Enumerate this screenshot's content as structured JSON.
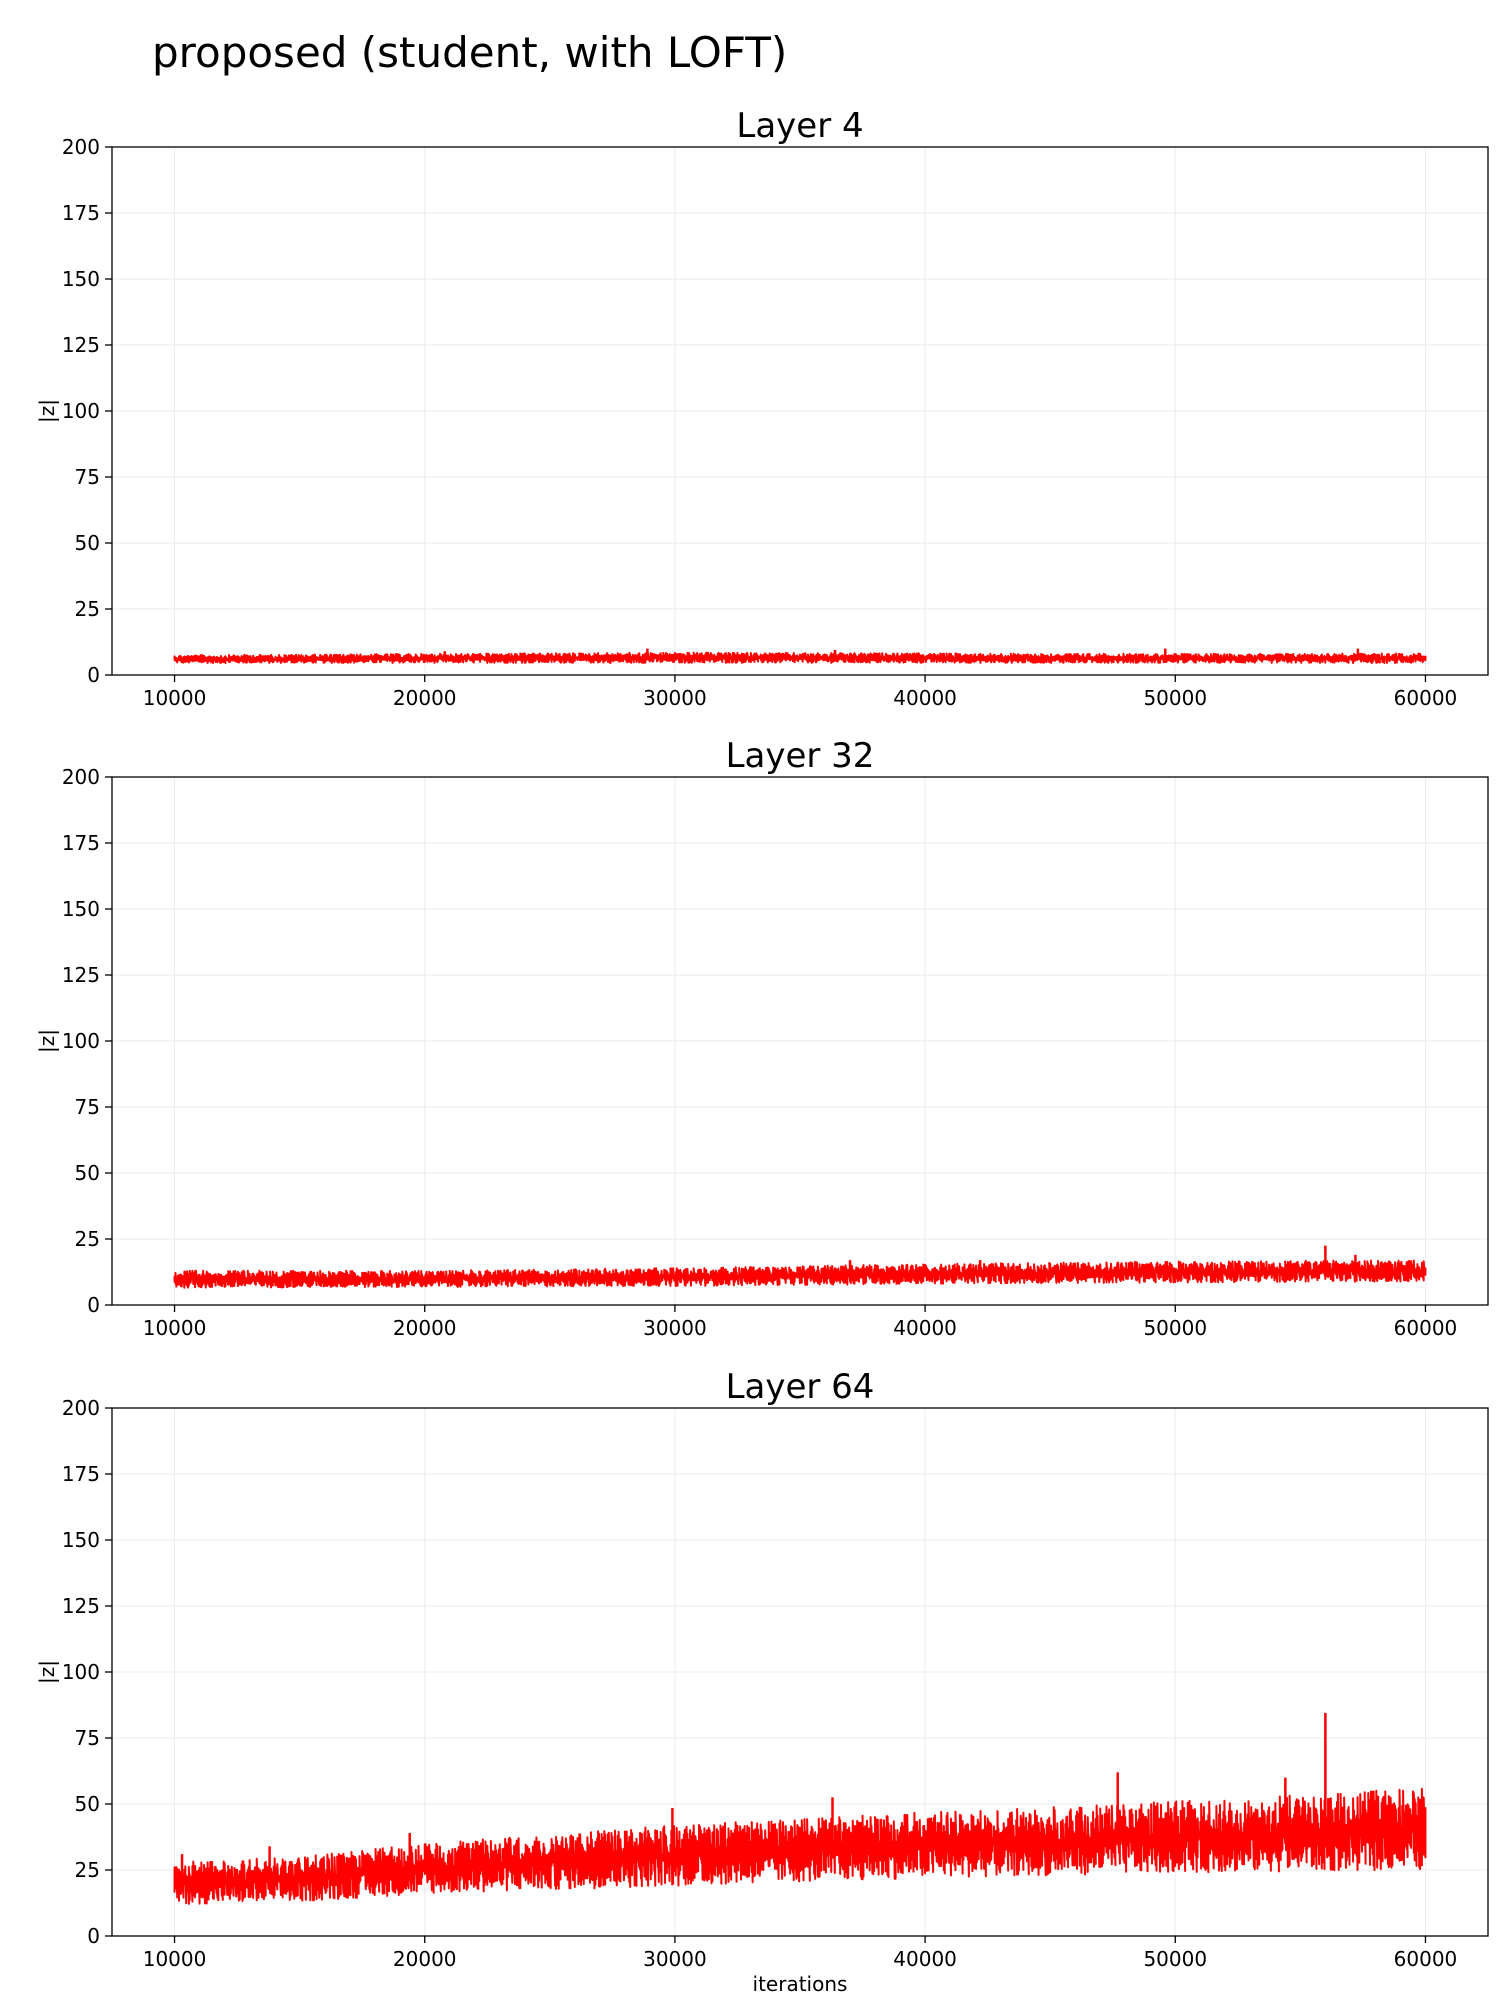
{
  "figure_title": "proposed (student, with LOFT)",
  "chart_data": [
    {
      "type": "line",
      "title": "Layer 4",
      "xlabel": "",
      "ylabel": "|z|",
      "xlim": [
        7500,
        62500
      ],
      "ylim": [
        0,
        200
      ],
      "xticks": [
        "10000",
        "20000",
        "30000",
        "40000",
        "50000",
        "60000"
      ],
      "yticks": [
        "0",
        "25",
        "50",
        "75",
        "100",
        "125",
        "150",
        "175",
        "200"
      ],
      "grid": true,
      "color": "#ff0000",
      "series": [
        {
          "x": [
            10000,
            20000,
            30000,
            40000,
            50000,
            60000
          ],
          "y_mean": [
            6,
            6.2,
            6.3,
            6.3,
            6.2,
            6
          ],
          "y_low": [
            4.5,
            4.6,
            4.6,
            4.6,
            4.6,
            4.5
          ],
          "y_high": [
            7.5,
            8,
            8.5,
            8.2,
            8.0,
            8.2
          ],
          "spikes": [
            [
              20800,
              9
            ],
            [
              28900,
              10
            ],
            [
              36400,
              9.5
            ],
            [
              49600,
              10
            ],
            [
              57300,
              10
            ]
          ]
        }
      ]
    },
    {
      "type": "line",
      "title": "Layer 32",
      "xlabel": "",
      "ylabel": "|z|",
      "xlim": [
        7500,
        62500
      ],
      "ylim": [
        0,
        200
      ],
      "xticks": [
        "10000",
        "20000",
        "30000",
        "40000",
        "50000",
        "60000"
      ],
      "yticks": [
        "0",
        "25",
        "50",
        "75",
        "100",
        "125",
        "150",
        "175",
        "200"
      ],
      "grid": true,
      "color": "#ff0000",
      "series": [
        {
          "x": [
            10000,
            20000,
            30000,
            40000,
            50000,
            60000
          ],
          "y_mean": [
            9.5,
            9.5,
            10,
            11,
            12,
            12.5
          ],
          "y_low": [
            6.5,
            6.8,
            7.2,
            8,
            8.5,
            9
          ],
          "y_high": [
            13,
            13,
            14,
            15.5,
            16.5,
            17
          ],
          "spikes": [
            [
              37000,
              17
            ],
            [
              42200,
              17
            ],
            [
              56000,
              22.5
            ],
            [
              57200,
              19
            ]
          ]
        }
      ]
    },
    {
      "type": "line",
      "title": "Layer 64",
      "xlabel": "iterations",
      "ylabel": "|z|",
      "xlim": [
        7500,
        62500
      ],
      "ylim": [
        0,
        200
      ],
      "xticks": [
        "10000",
        "20000",
        "30000",
        "40000",
        "50000",
        "60000"
      ],
      "yticks": [
        "0",
        "25",
        "50",
        "75",
        "100",
        "125",
        "150",
        "175",
        "200"
      ],
      "grid": true,
      "color": "#ff0000",
      "series": [
        {
          "x": [
            10000,
            15000,
            20000,
            30000,
            40000,
            50000,
            60000
          ],
          "y_mean": [
            18,
            19,
            23,
            28,
            32,
            35,
            38
          ],
          "y_low": [
            12,
            13,
            16,
            19,
            22,
            24,
            25
          ],
          "y_high": [
            28,
            30,
            35,
            42,
            47,
            51,
            56
          ],
          "spikes": [
            [
              10300,
              31
            ],
            [
              13800,
              34
            ],
            [
              19400,
              39
            ],
            [
              29900,
              48.5
            ],
            [
              36300,
              52.5
            ],
            [
              47700,
              62
            ],
            [
              54400,
              60
            ],
            [
              56000,
              84.5
            ]
          ]
        }
      ]
    }
  ]
}
